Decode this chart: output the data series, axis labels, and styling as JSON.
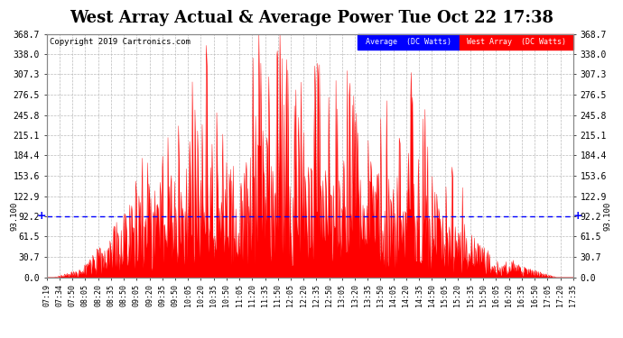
{
  "title": "West Array Actual & Average Power Tue Oct 22 17:38",
  "copyright": "Copyright 2019 Cartronics.com",
  "legend_avg": "Average  (DC Watts)",
  "legend_west": "West Array  (DC Watts)",
  "avg_value": 92.2,
  "left_ylabel": "93.100",
  "right_ylabel": "93.100",
  "yticks": [
    0.0,
    30.7,
    61.5,
    92.2,
    122.9,
    153.6,
    184.4,
    215.1,
    245.8,
    276.5,
    307.3,
    338.0,
    368.7
  ],
  "ymax": 368.7,
  "background_color": "#ffffff",
  "fill_color": "#ff0000",
  "line_color": "#ff0000",
  "avg_line_color": "#0000ff",
  "grid_color": "#bbbbbb",
  "title_fontsize": 13,
  "xtick_labels": [
    "07:19",
    "07:34",
    "07:50",
    "08:05",
    "08:20",
    "08:35",
    "08:50",
    "09:05",
    "09:20",
    "09:35",
    "09:50",
    "10:05",
    "10:20",
    "10:35",
    "10:50",
    "11:05",
    "11:20",
    "11:35",
    "11:50",
    "12:05",
    "12:20",
    "12:35",
    "12:50",
    "13:05",
    "13:20",
    "13:35",
    "13:50",
    "14:05",
    "14:20",
    "14:35",
    "14:50",
    "15:05",
    "15:20",
    "15:35",
    "15:50",
    "16:05",
    "16:20",
    "16:35",
    "16:50",
    "17:05",
    "17:20",
    "17:35"
  ]
}
